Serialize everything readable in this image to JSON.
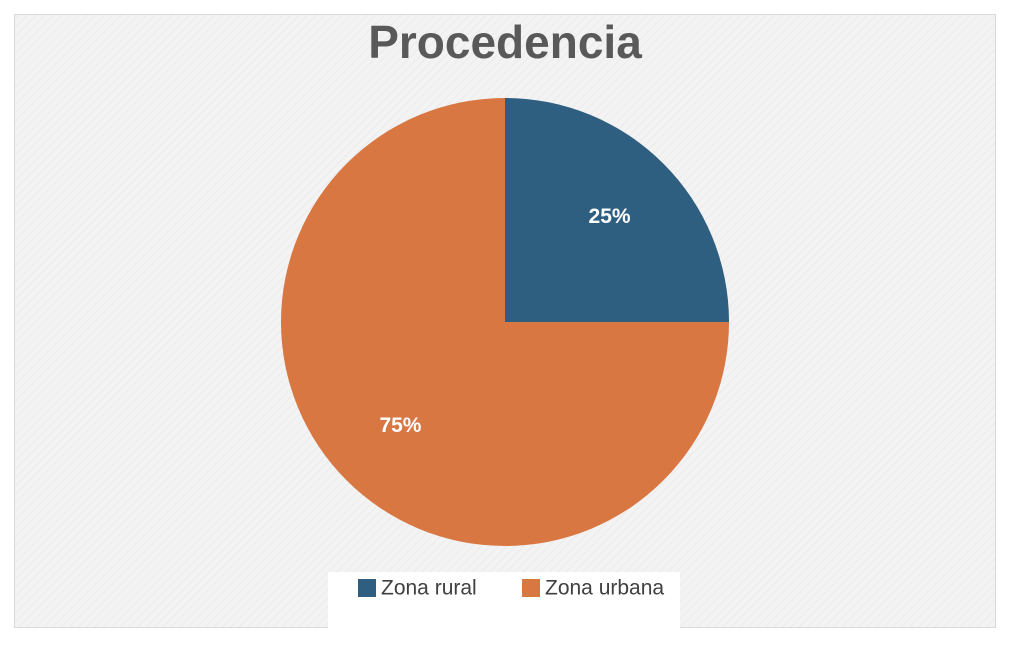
{
  "chart_data": {
    "type": "pie",
    "title": "Procedencia",
    "categories": [
      "Zona rural",
      "Zona urbana"
    ],
    "values": [
      25,
      75
    ],
    "value_labels": [
      "25%",
      "75%"
    ],
    "colors": [
      "#2e5f80",
      "#d97743"
    ],
    "legend": "bottom"
  }
}
